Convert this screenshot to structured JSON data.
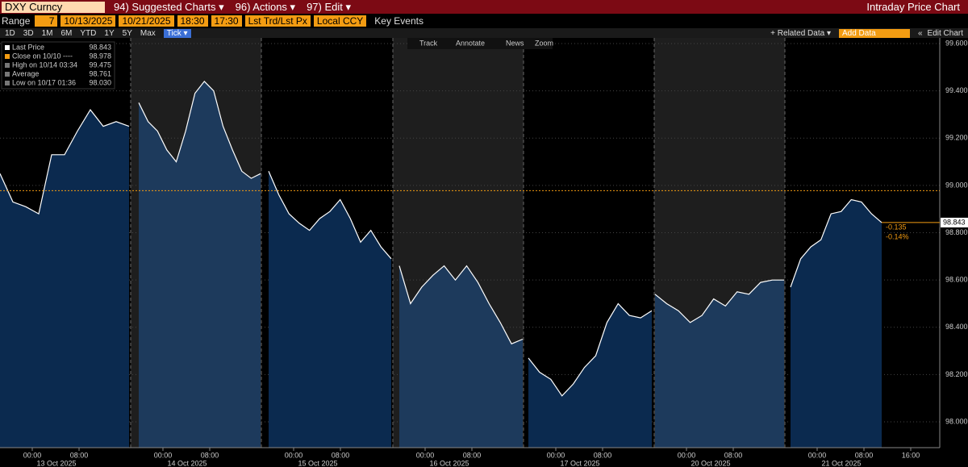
{
  "header": {
    "ticker": "DXY Curncy",
    "menus": [
      "94) Suggested Charts ▾",
      "96) Actions ▾",
      "97) Edit ▾"
    ],
    "window_title": "Intraday Price Chart"
  },
  "range_bar": {
    "label": "Range",
    "days": "7",
    "start_date": "10/13/2025",
    "end_date": "10/21/2025",
    "start_time": "18:30",
    "end_time": "17:30",
    "field": "Lst Trd/Lst Px",
    "currency": "Local CCY",
    "key_events": "Key Events"
  },
  "period_bar": {
    "periods": [
      "1D",
      "3D",
      "1M",
      "6M",
      "YTD",
      "1Y",
      "5Y",
      "Max",
      "Tick ▾"
    ],
    "related": "+ Related Data ▾",
    "add_data": "Add Data",
    "collapse": "«",
    "edit_chart": "Edit Chart"
  },
  "tools": [
    "Track",
    "Annotate",
    "News",
    "Zoom"
  ],
  "chart_data": {
    "type": "area",
    "stats": [
      [
        "Last Price",
        "98.843"
      ],
      [
        "Close on 10/10 ----",
        "98.978"
      ],
      [
        "High on 10/14 03:34",
        "99.475"
      ],
      [
        "Average",
        "98.761"
      ],
      [
        "Low on 10/17 01:36",
        "98.030"
      ]
    ],
    "close": 98.978,
    "last": 98.843,
    "last_label": "98.843",
    "change": [
      "-0.135",
      "-0.14%"
    ],
    "line_color": "#ffffff",
    "fill_color": "#0b2a4f",
    "ylim": [
      97.891,
      99.624
    ],
    "yticks": [
      {
        "value": 98,
        "label": "98.000"
      },
      {
        "value": 98.2,
        "label": "98.200"
      },
      {
        "value": 98.4,
        "label": "98.400"
      },
      {
        "value": 98.6,
        "label": "98.600"
      },
      {
        "value": 98.8,
        "label": "98.800"
      },
      {
        "value": 99,
        "label": "99.000"
      },
      {
        "value": 99.2,
        "label": "99.200"
      },
      {
        "value": 99.4,
        "label": "99.400"
      },
      {
        "value": 99.6,
        "label": "99.600"
      }
    ],
    "sessions": [
      {
        "date": "13 Oct 2025",
        "ticks": [
          "00:00",
          "08:00"
        ],
        "values": [
          99.05,
          98.93,
          98.91,
          98.88,
          99.13,
          99.13,
          99.23,
          99.32,
          99.25,
          99.27,
          99.25
        ]
      },
      {
        "date": "14 Oct 2025",
        "ticks": [
          "00:00",
          "08:00"
        ],
        "values": [
          99.35,
          99.27,
          99.23,
          99.15,
          99.1,
          99.23,
          99.39,
          99.44,
          99.4,
          99.25,
          99.15,
          99.06,
          99.03,
          99.05
        ]
      },
      {
        "date": "15 Oct 2025",
        "ticks": [
          "00:00",
          "08:00"
        ],
        "values": [
          99.06,
          98.96,
          98.88,
          98.84,
          98.81,
          98.86,
          98.89,
          98.94,
          98.86,
          98.76,
          98.81,
          98.74,
          98.69
        ]
      },
      {
        "date": "16 Oct 2025",
        "ticks": [
          "00:00",
          "08:00"
        ],
        "values": [
          98.66,
          98.5,
          98.57,
          98.62,
          98.66,
          98.6,
          98.66,
          98.59,
          98.5,
          98.42,
          98.33,
          98.35
        ]
      },
      {
        "date": "17 Oct 2025",
        "ticks": [
          "00:00",
          "08:00"
        ],
        "values": [
          98.27,
          98.21,
          98.18,
          98.11,
          98.16,
          98.23,
          98.28,
          98.42,
          98.5,
          98.45,
          98.44,
          98.47
        ]
      },
      {
        "date": "20 Oct 2025",
        "ticks": [
          "00:00",
          "08:00"
        ],
        "values": [
          98.54,
          98.5,
          98.47,
          98.42,
          98.45,
          98.52,
          98.49,
          98.55,
          98.54,
          98.59,
          98.6,
          98.6
        ]
      },
      {
        "date": "21 Oct 2025",
        "ticks": [
          "00:00",
          "08:00",
          "16:00"
        ],
        "values": [
          98.57,
          98.69,
          98.74,
          98.77,
          98.88,
          98.89,
          98.94,
          98.93,
          98.88,
          98.843
        ]
      }
    ]
  }
}
